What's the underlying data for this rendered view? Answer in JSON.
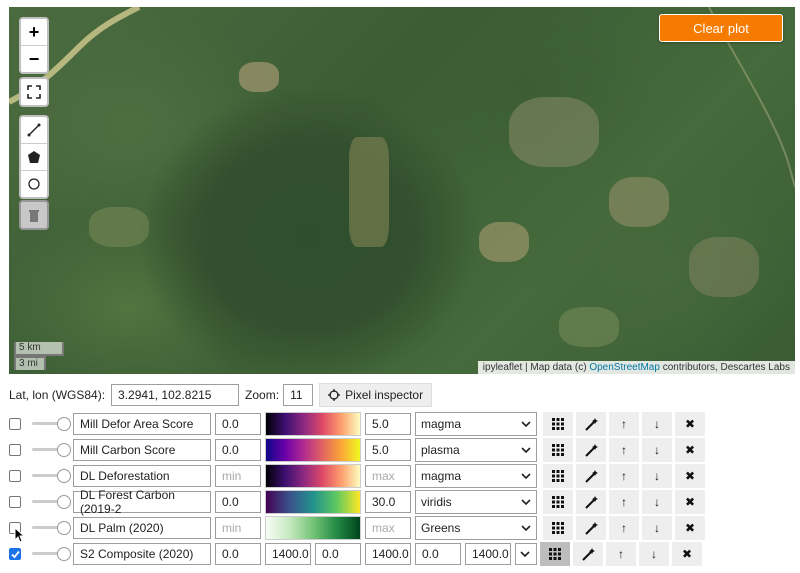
{
  "map": {
    "zoom_in": "+",
    "zoom_out": "−",
    "clear_plot": "Clear plot",
    "scale_km": "5 km",
    "scale_mi": "3 mi",
    "attribution_prefix": "ipyleaflet | Map data (c) ",
    "attribution_link": "OpenStreetMap",
    "attribution_suffix": " contributors, Descartes Labs"
  },
  "coords": {
    "label": "Lat, lon (WGS84):",
    "value": "3.2941, 102.8215",
    "zoom_label": "Zoom:",
    "zoom_value": "11",
    "pixel_inspector": "Pixel inspector"
  },
  "layers": [
    {
      "checked": false,
      "name": "Mill Defor Area Score",
      "min": "0.0",
      "max": "5.0",
      "cmap": "magma",
      "colorbar": "magma"
    },
    {
      "checked": false,
      "name": "Mill Carbon Score",
      "min": "0.0",
      "max": "5.0",
      "cmap": "plasma",
      "colorbar": "plasma"
    },
    {
      "checked": false,
      "name": "DL Deforestation",
      "min": "min",
      "max": "max",
      "cmap": "magma",
      "colorbar": "magma"
    },
    {
      "checked": false,
      "name": "DL Forest Carbon (2019-2",
      "min": "0.0",
      "max": "30.0",
      "cmap": "viridis",
      "colorbar": "viridis"
    },
    {
      "checked": false,
      "name": "DL Palm (2020)",
      "min": "min",
      "max": "max",
      "cmap": "Greens",
      "colorbar": "Greens"
    }
  ],
  "composite": {
    "checked": true,
    "name": "S2 Composite (2020)",
    "values": [
      "0.0",
      "1400.0",
      "0.0",
      "1400.0",
      "0.0",
      "1400.0"
    ]
  },
  "icons": {
    "table": "grid-icon",
    "magic": "wand-icon",
    "up": "↑",
    "down": "↓",
    "remove": "✖"
  }
}
